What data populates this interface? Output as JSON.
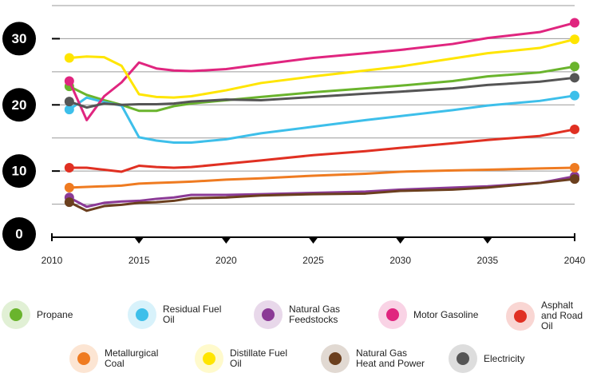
{
  "chart_data": {
    "type": "line",
    "x": [
      2011,
      2012,
      2013,
      2014,
      2015,
      2016,
      2017,
      2018,
      2020,
      2022,
      2025,
      2028,
      2030,
      2033,
      2035,
      2038,
      2040
    ],
    "xlim": [
      2010,
      2040
    ],
    "xticks": [
      2010,
      2015,
      2020,
      2025,
      2030,
      2035,
      2040
    ],
    "ylim": [
      0,
      35
    ],
    "yticks": [
      0,
      10,
      20,
      30
    ],
    "grid_lines": [
      5,
      10,
      15,
      20,
      25,
      30,
      35
    ],
    "series": [
      {
        "name": "Propane",
        "color": "#6ab42d",
        "values": [
          22.8,
          21.5,
          20.7,
          20.0,
          19.1,
          19.1,
          19.8,
          20.2,
          20.7,
          21.2,
          21.9,
          22.5,
          22.9,
          23.6,
          24.3,
          24.9,
          25.8
        ]
      },
      {
        "name": "Residual Fuel Oil",
        "color": "#3dbfea",
        "values": [
          19.3,
          21.1,
          20.4,
          19.9,
          15.1,
          14.6,
          14.3,
          14.3,
          14.8,
          15.7,
          16.7,
          17.7,
          18.3,
          19.2,
          19.9,
          20.6,
          21.4
        ]
      },
      {
        "name": "Natural Gas Feedstocks",
        "color": "#8b3a96",
        "values": [
          6.0,
          4.6,
          5.2,
          5.4,
          5.5,
          5.8,
          6.0,
          6.4,
          6.4,
          6.5,
          6.7,
          6.9,
          7.2,
          7.5,
          7.7,
          8.2,
          9.2
        ]
      },
      {
        "name": "Motor Gasoline",
        "color": "#e0257f",
        "values": [
          23.6,
          17.7,
          21.3,
          23.4,
          26.4,
          25.5,
          25.2,
          25.1,
          25.4,
          26.1,
          27.1,
          27.8,
          28.3,
          29.2,
          30.1,
          31.0,
          32.4
        ]
      },
      {
        "name": "Asphalt and Road Oil",
        "color": "#e03022",
        "values": [
          10.5,
          10.5,
          10.2,
          9.9,
          10.8,
          10.6,
          10.5,
          10.6,
          11.1,
          11.6,
          12.4,
          13.0,
          13.5,
          14.2,
          14.7,
          15.3,
          16.3
        ]
      },
      {
        "name": "Metallurgical Coal",
        "color": "#ef7b21",
        "values": [
          7.5,
          7.6,
          7.7,
          7.8,
          8.1,
          8.2,
          8.3,
          8.4,
          8.7,
          8.9,
          9.3,
          9.6,
          9.9,
          10.1,
          10.2,
          10.4,
          10.5
        ]
      },
      {
        "name": "Distillate Fuel Oil",
        "color": "#ffe500",
        "values": [
          27.1,
          27.3,
          27.2,
          25.9,
          21.6,
          21.2,
          21.1,
          21.3,
          22.2,
          23.3,
          24.3,
          25.2,
          25.8,
          27.0,
          27.8,
          28.6,
          29.9
        ]
      },
      {
        "name": "Natural Gas Heat and Power",
        "color": "#6b3f1e",
        "values": [
          5.3,
          4.0,
          4.7,
          4.9,
          5.2,
          5.3,
          5.5,
          5.9,
          6.0,
          6.3,
          6.5,
          6.6,
          7.0,
          7.2,
          7.5,
          8.2,
          8.8
        ]
      },
      {
        "name": "Electricity",
        "color": "#555555",
        "values": [
          20.5,
          19.6,
          20.2,
          20.0,
          20.1,
          20.1,
          20.2,
          20.5,
          20.8,
          20.7,
          21.2,
          21.7,
          22.0,
          22.5,
          23.0,
          23.5,
          24.1
        ]
      }
    ]
  }
}
